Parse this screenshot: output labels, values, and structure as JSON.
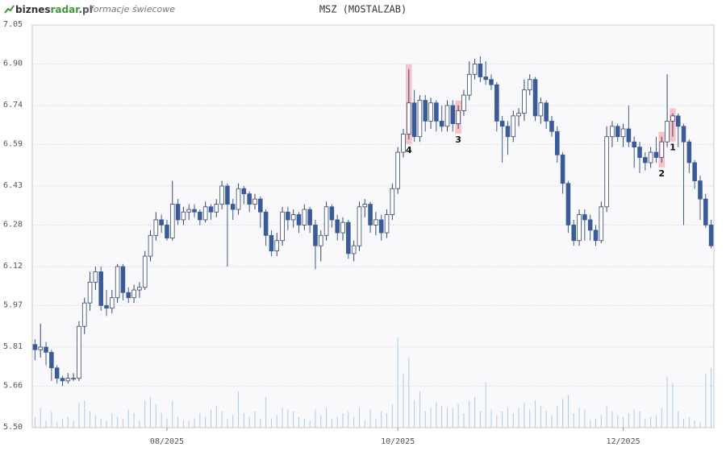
{
  "header": {
    "logo_parts": [
      "biznes",
      "radar",
      ".pl"
    ],
    "subtitle": "formacje świecowe"
  },
  "chart_data": {
    "type": "candlestick",
    "title": "MSZ (MOSTALZAB)",
    "up_color": "#ffffff",
    "down_color": "#3b5b98",
    "outline_color": "#34466e",
    "volume_color": "#a9cbe8",
    "marker_color": "#f4a3ad",
    "grid": true,
    "xlim": [
      -0.5,
      123.5
    ],
    "xticks": [
      {
        "value": 24,
        "label": "08/2025"
      },
      {
        "value": 66,
        "label": "10/2025"
      },
      {
        "value": 107,
        "label": "12/2025"
      }
    ],
    "ylim": [
      5.5,
      7.05
    ],
    "yticks": [
      {
        "value": 5.5,
        "label": "5.50"
      },
      5.66,
      5.81,
      5.97,
      6.12,
      6.28,
      6.43,
      6.59,
      6.74,
      {
        "value": 6.9,
        "label": "6.90"
      },
      7.05
    ],
    "open": [
      5.82,
      5.8,
      5.81,
      5.79,
      5.73,
      5.69,
      5.68,
      5.69,
      5.69,
      5.89,
      5.98,
      6.06,
      6.1,
      5.97,
      5.96,
      6.0,
      6.12,
      6.02,
      6.0,
      6.03,
      6.04,
      6.16,
      6.24,
      6.3,
      6.28,
      6.23,
      6.36,
      6.3,
      6.33,
      6.34,
      6.33,
      6.3,
      6.35,
      6.33,
      6.36,
      6.43,
      6.36,
      6.34,
      6.42,
      6.4,
      6.36,
      6.38,
      6.33,
      6.24,
      6.18,
      6.22,
      6.33,
      6.3,
      6.32,
      6.28,
      6.34,
      6.28,
      6.2,
      6.24,
      6.35,
      6.3,
      6.25,
      6.29,
      6.17,
      6.2,
      6.35,
      6.36,
      6.28,
      6.3,
      6.25,
      6.32,
      6.42,
      6.56,
      6.63,
      6.75,
      6.62,
      6.76,
      6.68,
      6.75,
      6.68,
      6.66,
      6.74,
      6.67,
      6.72,
      6.78,
      6.86,
      6.9,
      6.85,
      6.84,
      6.82,
      6.68,
      6.66,
      6.62,
      6.7,
      6.71,
      6.8,
      6.84,
      6.7,
      6.75,
      6.68,
      6.64,
      6.55,
      6.44,
      6.28,
      6.22,
      6.32,
      6.3,
      6.26,
      6.22,
      6.35,
      6.62,
      6.66,
      6.62,
      6.65,
      6.6,
      6.58,
      6.54,
      6.52,
      6.56,
      6.54,
      6.6,
      6.68,
      6.7,
      6.66,
      6.6,
      6.52,
      6.45,
      6.38,
      6.28
    ],
    "high": [
      5.84,
      5.9,
      5.83,
      5.8,
      5.74,
      5.7,
      5.71,
      5.71,
      5.91,
      6.0,
      6.1,
      6.12,
      6.12,
      6.03,
      6.03,
      6.13,
      6.13,
      6.04,
      6.05,
      6.06,
      6.18,
      6.26,
      6.33,
      6.32,
      6.3,
      6.45,
      6.38,
      6.35,
      6.36,
      6.36,
      6.34,
      6.37,
      6.36,
      6.38,
      6.45,
      6.44,
      6.38,
      6.44,
      6.43,
      6.41,
      6.4,
      6.39,
      6.34,
      6.26,
      6.25,
      6.35,
      6.35,
      6.34,
      6.33,
      6.36,
      6.35,
      6.3,
      6.26,
      6.37,
      6.36,
      6.32,
      6.31,
      6.3,
      6.22,
      6.37,
      6.38,
      6.37,
      6.33,
      6.32,
      6.34,
      6.44,
      6.58,
      6.65,
      6.88,
      6.8,
      6.78,
      6.78,
      6.77,
      6.76,
      6.74,
      6.76,
      6.76,
      6.74,
      6.8,
      6.91,
      6.92,
      6.93,
      6.91,
      6.86,
      6.83,
      6.7,
      6.68,
      6.72,
      6.73,
      6.84,
      6.86,
      6.85,
      6.77,
      6.76,
      6.7,
      6.66,
      6.56,
      6.45,
      6.3,
      6.34,
      6.34,
      6.32,
      6.28,
      6.37,
      6.66,
      6.68,
      6.67,
      6.67,
      6.74,
      6.62,
      6.6,
      6.56,
      6.58,
      6.62,
      6.62,
      6.86,
      6.71,
      6.71,
      6.67,
      6.61,
      6.53,
      6.47,
      6.4,
      6.3
    ],
    "low": [
      5.76,
      5.77,
      5.74,
      5.68,
      5.67,
      5.66,
      5.67,
      5.68,
      5.68,
      5.86,
      5.95,
      6.03,
      5.95,
      5.93,
      5.94,
      5.98,
      5.99,
      5.98,
      5.98,
      6.0,
      6.03,
      6.14,
      6.22,
      6.25,
      6.22,
      6.22,
      6.28,
      6.28,
      6.3,
      6.31,
      6.28,
      6.29,
      6.3,
      6.31,
      6.34,
      6.12,
      6.3,
      6.32,
      6.36,
      6.33,
      6.34,
      6.27,
      6.2,
      6.16,
      6.16,
      6.2,
      6.26,
      6.27,
      6.25,
      6.26,
      6.25,
      6.11,
      6.14,
      6.22,
      6.27,
      6.22,
      6.22,
      6.15,
      6.14,
      6.18,
      6.31,
      6.25,
      6.24,
      6.22,
      6.23,
      6.3,
      6.4,
      6.54,
      6.61,
      6.6,
      6.6,
      6.64,
      6.65,
      6.64,
      6.64,
      6.64,
      6.64,
      6.65,
      6.7,
      6.76,
      6.84,
      6.83,
      6.82,
      6.8,
      6.64,
      6.52,
      6.55,
      6.6,
      6.66,
      6.68,
      6.78,
      6.68,
      6.67,
      6.65,
      6.62,
      6.52,
      6.4,
      6.25,
      6.2,
      6.2,
      6.22,
      6.22,
      6.2,
      6.21,
      6.33,
      6.58,
      6.6,
      6.58,
      6.58,
      6.5,
      6.48,
      6.49,
      6.5,
      6.52,
      6.52,
      6.58,
      6.62,
      6.58,
      6.28,
      6.48,
      6.42,
      6.3,
      6.27,
      6.19
    ],
    "close": [
      5.8,
      5.81,
      5.79,
      5.73,
      5.69,
      5.68,
      5.69,
      5.69,
      5.89,
      5.98,
      6.06,
      6.1,
      5.97,
      5.96,
      6.0,
      6.12,
      6.02,
      6.0,
      6.03,
      6.04,
      6.16,
      6.24,
      6.3,
      6.28,
      6.23,
      6.36,
      6.3,
      6.33,
      6.34,
      6.33,
      6.3,
      6.35,
      6.33,
      6.36,
      6.43,
      6.36,
      6.34,
      6.42,
      6.4,
      6.36,
      6.38,
      6.33,
      6.24,
      6.18,
      6.22,
      6.33,
      6.3,
      6.32,
      6.28,
      6.34,
      6.28,
      6.2,
      6.24,
      6.35,
      6.3,
      6.25,
      6.29,
      6.17,
      6.2,
      6.35,
      6.36,
      6.28,
      6.3,
      6.25,
      6.32,
      6.42,
      6.56,
      6.63,
      6.75,
      6.62,
      6.76,
      6.68,
      6.75,
      6.68,
      6.66,
      6.74,
      6.67,
      6.72,
      6.78,
      6.86,
      6.9,
      6.85,
      6.84,
      6.82,
      6.68,
      6.66,
      6.62,
      6.7,
      6.71,
      6.8,
      6.84,
      6.7,
      6.75,
      6.68,
      6.64,
      6.55,
      6.44,
      6.28,
      6.22,
      6.32,
      6.3,
      6.26,
      6.22,
      6.35,
      6.62,
      6.66,
      6.62,
      6.65,
      6.6,
      6.58,
      6.54,
      6.52,
      6.56,
      6.54,
      6.6,
      6.68,
      6.7,
      6.66,
      6.6,
      6.52,
      6.45,
      6.38,
      6.28,
      6.2
    ],
    "volume_lim": [
      0,
      100
    ],
    "volume": [
      12,
      22,
      8,
      18,
      6,
      10,
      12,
      8,
      28,
      30,
      18,
      14,
      10,
      8,
      16,
      12,
      10,
      20,
      16,
      8,
      30,
      34,
      26,
      16,
      10,
      30,
      12,
      8,
      8,
      10,
      16,
      12,
      20,
      24,
      18,
      10,
      14,
      40,
      16,
      12,
      18,
      10,
      34,
      10,
      14,
      22,
      20,
      18,
      12,
      10,
      8,
      20,
      14,
      22,
      10,
      12,
      16,
      18,
      12,
      22,
      8,
      20,
      10,
      18,
      16,
      26,
      100,
      60,
      78,
      30,
      40,
      18,
      22,
      28,
      24,
      22,
      22,
      26,
      16,
      30,
      34,
      18,
      50,
      20,
      14,
      18,
      22,
      16,
      22,
      28,
      20,
      30,
      24,
      18,
      14,
      24,
      32,
      36,
      16,
      22,
      20,
      8,
      10,
      14,
      24,
      18,
      14,
      12,
      16,
      20,
      18,
      10,
      12,
      14,
      22,
      56,
      50,
      18,
      10,
      12,
      8,
      6,
      60,
      66
    ],
    "patterns": [
      {
        "label": "4",
        "index": 68
      },
      {
        "label": "3",
        "index": 77
      },
      {
        "label": "2",
        "index": 114
      },
      {
        "label": "1",
        "index": 116
      }
    ]
  }
}
